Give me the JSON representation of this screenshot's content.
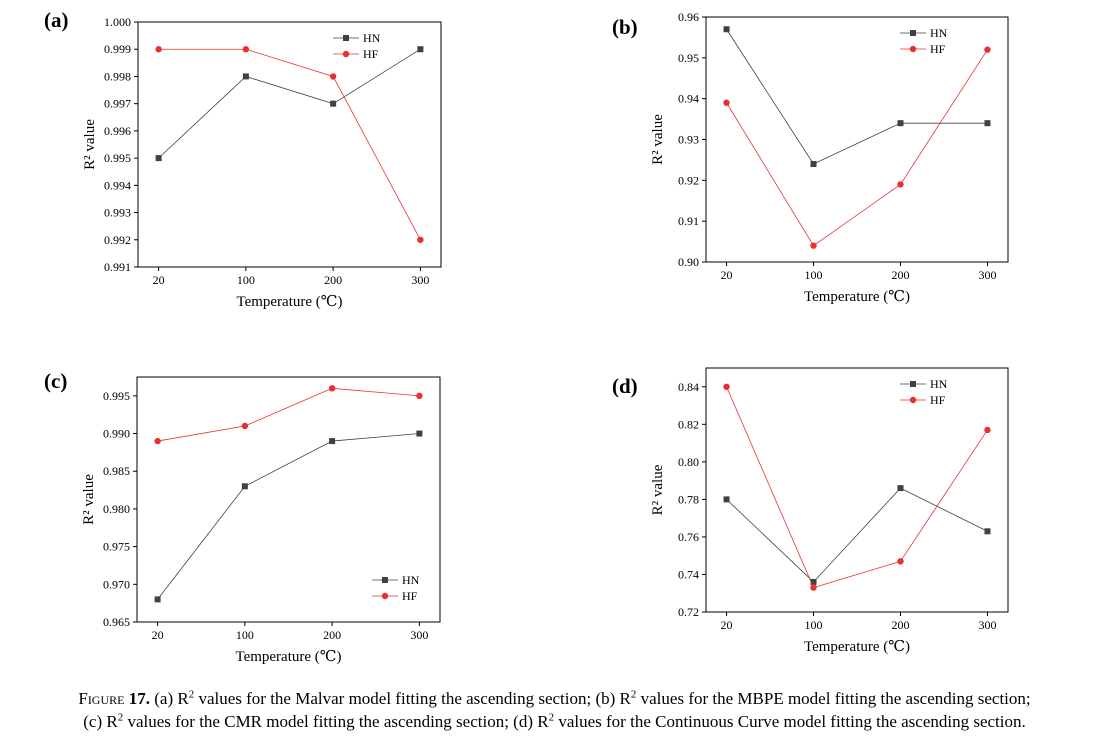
{
  "chart_data": [
    {
      "panel": "(a)",
      "type": "line",
      "categories": [
        "20",
        "100",
        "200",
        "300"
      ],
      "series": [
        {
          "name": "HN",
          "values": [
            0.995,
            0.998,
            0.997,
            0.999
          ],
          "color": "#404040",
          "marker": "square"
        },
        {
          "name": "HF",
          "values": [
            0.999,
            0.999,
            0.998,
            0.992
          ],
          "color": "#e8302e",
          "marker": "circle"
        }
      ],
      "xlabel": "Temperature (℃)",
      "ylabel": "R² value",
      "ylim": [
        0.991,
        1.0
      ],
      "yticks": [
        "0.991",
        "0.992",
        "0.993",
        "0.994",
        "0.995",
        "0.996",
        "0.997",
        "0.998",
        "0.999",
        "1.000"
      ],
      "legend": "top-right",
      "grid": false
    },
    {
      "panel": "(b)",
      "type": "line",
      "categories": [
        "20",
        "100",
        "200",
        "300"
      ],
      "series": [
        {
          "name": "HN",
          "values": [
            0.957,
            0.924,
            0.934,
            0.934
          ],
          "color": "#404040",
          "marker": "square"
        },
        {
          "name": "HF",
          "values": [
            0.939,
            0.904,
            0.919,
            0.952
          ],
          "color": "#e8302e",
          "marker": "circle"
        }
      ],
      "xlabel": "Temperature (℃)",
      "ylabel": "R² value",
      "ylim": [
        0.9,
        0.96
      ],
      "yticks": [
        "0.90",
        "0.91",
        "0.92",
        "0.93",
        "0.94",
        "0.95",
        "0.96"
      ],
      "legend": "top-right",
      "grid": false
    },
    {
      "panel": "(c)",
      "type": "line",
      "categories": [
        "20",
        "100",
        "200",
        "300"
      ],
      "series": [
        {
          "name": "HN",
          "values": [
            0.968,
            0.983,
            0.989,
            0.99
          ],
          "color": "#404040",
          "marker": "square"
        },
        {
          "name": "HF",
          "values": [
            0.989,
            0.991,
            0.996,
            0.995
          ],
          "color": "#e8302e",
          "marker": "circle"
        }
      ],
      "xlabel": "Temperature (℃)",
      "ylabel": "R² value",
      "ylim": [
        0.965,
        0.9975
      ],
      "yticks": [
        "0.965",
        "0.970",
        "0.975",
        "0.980",
        "0.985",
        "0.990",
        "0.995"
      ],
      "legend": "bottom-right",
      "grid": false
    },
    {
      "panel": "(d)",
      "type": "line",
      "categories": [
        "20",
        "100",
        "200",
        "300"
      ],
      "series": [
        {
          "name": "HN",
          "values": [
            0.78,
            0.736,
            0.786,
            0.763
          ],
          "color": "#404040",
          "marker": "square"
        },
        {
          "name": "HF",
          "values": [
            0.84,
            0.733,
            0.747,
            0.817
          ],
          "color": "#e8302e",
          "marker": "circle"
        }
      ],
      "xlabel": "Temperature (℃)",
      "ylabel": "R² value",
      "ylim": [
        0.72,
        0.85
      ],
      "yticks": [
        "0.72",
        "0.74",
        "0.76",
        "0.78",
        "0.80",
        "0.82",
        "0.84"
      ],
      "legend": "top-right",
      "grid": false
    }
  ],
  "caption": {
    "label": "Figure",
    "number": "17.",
    "line1_parts": [
      "(a) R",
      "2",
      " values for the Malvar model fitting the ascending section; (b) R",
      "2",
      " values for the MBPE model fitting the ascending section;"
    ],
    "line2_parts": [
      "(c) R",
      "2",
      " values for the CMR model fitting the ascending section; (d) R",
      "2",
      " values for the Continuous Curve model fitting the ascending section."
    ]
  }
}
